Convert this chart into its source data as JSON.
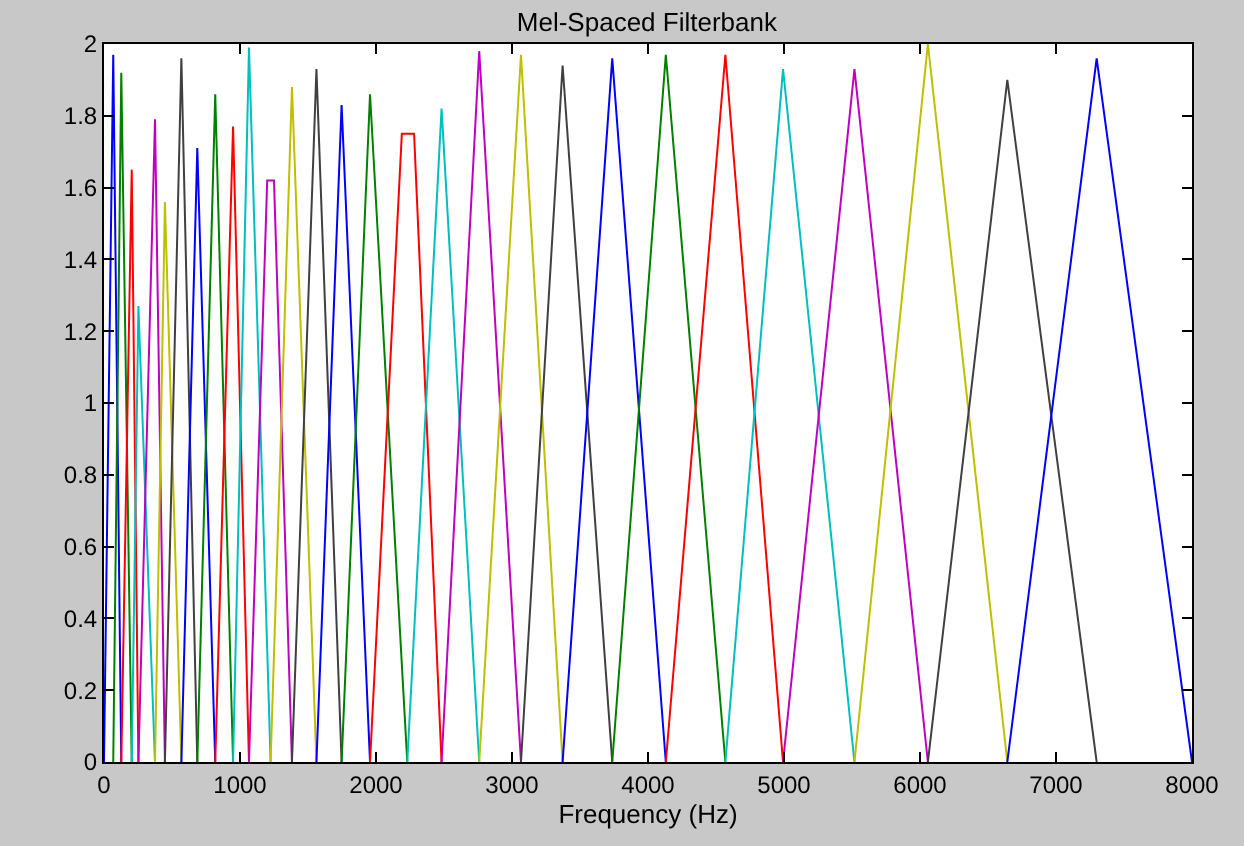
{
  "chart_data": {
    "type": "line",
    "title": "Mel-Spaced Filterbank",
    "xlabel": "Frequency (Hz)",
    "xlim": [
      0,
      8000
    ],
    "ylim": [
      0,
      2
    ],
    "xticks": [
      0,
      1000,
      2000,
      3000,
      4000,
      5000,
      6000,
      7000,
      8000
    ],
    "yticks": [
      0,
      0.2,
      0.4,
      0.6,
      0.8,
      1,
      1.2,
      1.4,
      1.6,
      1.8,
      2
    ],
    "marker": "none",
    "line_style": "solid",
    "series": [
      {
        "color": "#0000ff",
        "x": [
          0,
          68,
          127
        ],
        "values": [
          0,
          1.97,
          0
        ]
      },
      {
        "color": "#008000",
        "x": [
          68,
          127,
          204
        ],
        "values": [
          0,
          1.92,
          0
        ]
      },
      {
        "color": "#ff0000",
        "x": [
          127,
          204,
          253
        ],
        "values": [
          0,
          1.65,
          0
        ]
      },
      {
        "color": "#00bfbf",
        "x": [
          204,
          253,
          375
        ],
        "values": [
          0,
          1.27,
          0
        ]
      },
      {
        "color": "#bf00bf",
        "x": [
          253,
          375,
          448
        ],
        "values": [
          0,
          1.79,
          0
        ]
      },
      {
        "color": "#bfbf00",
        "x": [
          375,
          448,
          569
        ],
        "values": [
          0,
          1.56,
          0
        ]
      },
      {
        "color": "#404040",
        "x": [
          448,
          569,
          686
        ],
        "values": [
          0,
          1.96,
          0
        ]
      },
      {
        "color": "#0000ff",
        "x": [
          569,
          686,
          818
        ],
        "values": [
          0,
          1.71,
          0
        ]
      },
      {
        "color": "#008000",
        "x": [
          686,
          818,
          949
        ],
        "values": [
          0,
          1.86,
          0
        ]
      },
      {
        "color": "#ff0000",
        "x": [
          818,
          949,
          1066
        ],
        "values": [
          0,
          1.77,
          0
        ]
      },
      {
        "color": "#00bfbf",
        "x": [
          949,
          1066,
          1225
        ],
        "values": [
          0,
          1.99,
          0
        ]
      },
      {
        "color": "#bf00bf",
        "x": [
          1066,
          1200,
          1250,
          1382
        ],
        "values": [
          0,
          1.62,
          1.62,
          0
        ]
      },
      {
        "color": "#bfbf00",
        "x": [
          1225,
          1382,
          1562
        ],
        "values": [
          0,
          1.88,
          0
        ]
      },
      {
        "color": "#404040",
        "x": [
          1382,
          1562,
          1747
        ],
        "values": [
          0,
          1.93,
          0
        ]
      },
      {
        "color": "#0000ff",
        "x": [
          1562,
          1747,
          1956
        ],
        "values": [
          0,
          1.83,
          0
        ]
      },
      {
        "color": "#008000",
        "x": [
          1747,
          1956,
          2230
        ],
        "values": [
          0,
          1.86,
          0
        ]
      },
      {
        "color": "#ff0000",
        "x": [
          1956,
          2190,
          2280,
          2482
        ],
        "values": [
          0,
          1.75,
          1.75,
          0
        ]
      },
      {
        "color": "#00bfbf",
        "x": [
          2230,
          2482,
          2759
        ],
        "values": [
          0,
          1.82,
          0
        ]
      },
      {
        "color": "#bf00bf",
        "x": [
          2482,
          2759,
          3066
        ],
        "values": [
          0,
          1.98,
          0
        ]
      },
      {
        "color": "#bfbf00",
        "x": [
          2759,
          3066,
          3372
        ],
        "values": [
          0,
          1.97,
          0
        ]
      },
      {
        "color": "#404040",
        "x": [
          3066,
          3372,
          3737
        ],
        "values": [
          0,
          1.94,
          0
        ]
      },
      {
        "color": "#0000ff",
        "x": [
          3372,
          3737,
          4131
        ],
        "values": [
          0,
          1.96,
          0
        ]
      },
      {
        "color": "#008000",
        "x": [
          3737,
          4131,
          4569
        ],
        "values": [
          0,
          1.97,
          0
        ]
      },
      {
        "color": "#ff0000",
        "x": [
          4131,
          4569,
          4993
        ],
        "values": [
          0,
          1.97,
          0
        ]
      },
      {
        "color": "#00bfbf",
        "x": [
          4569,
          4993,
          5518
        ],
        "values": [
          0,
          1.93,
          0
        ]
      },
      {
        "color": "#bf00bf",
        "x": [
          4993,
          5518,
          6058
        ],
        "values": [
          0,
          1.93,
          0
        ]
      },
      {
        "color": "#bfbf00",
        "x": [
          5518,
          6058,
          6642
        ],
        "values": [
          0,
          2.0,
          0
        ]
      },
      {
        "color": "#404040",
        "x": [
          6058,
          6642,
          7299
        ],
        "values": [
          0,
          1.9,
          0
        ]
      },
      {
        "color": "#0000ff",
        "x": [
          6642,
          7299,
          8000
        ],
        "values": [
          0,
          1.96,
          0
        ]
      }
    ]
  }
}
